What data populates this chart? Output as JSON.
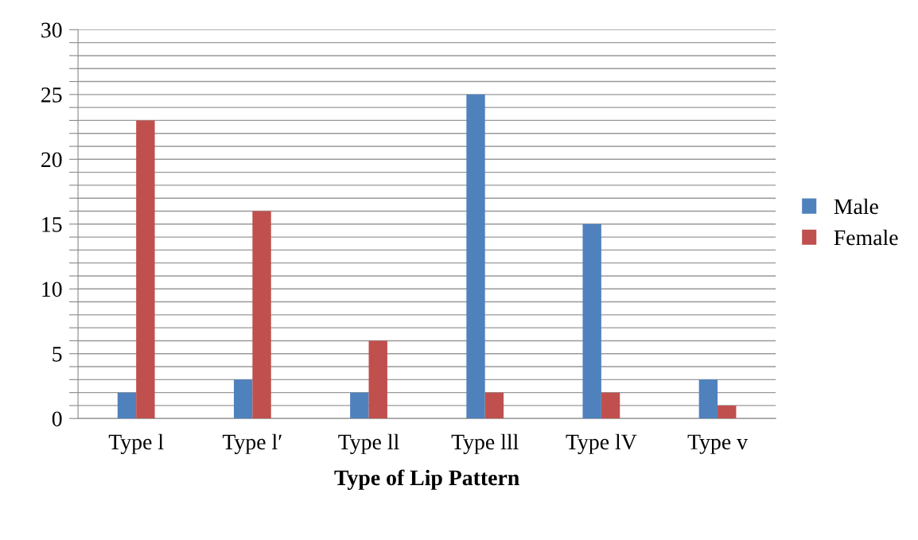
{
  "chart_data": {
    "type": "bar",
    "xlabel": "Type of Lip Pattern",
    "categories": [
      "Type l",
      "Type l′",
      "Type ll",
      "Type lll",
      "Type lV",
      "Type v"
    ],
    "series": [
      {
        "name": "Male",
        "color": "#4f81bd",
        "values": [
          2,
          3,
          2,
          25,
          15,
          3
        ]
      },
      {
        "name": "Female",
        "color": "#c0504d",
        "values": [
          23,
          16,
          6,
          2,
          2,
          1
        ]
      }
    ],
    "ylim": [
      0,
      30
    ],
    "yticks": [
      0,
      {
        "value": 1,
        "label": null
      },
      {
        "value": 2,
        "label": null
      },
      {
        "value": 3,
        "label": null
      },
      {
        "value": 4,
        "label": null
      },
      5,
      {
        "value": 6,
        "label": null
      },
      {
        "value": 7,
        "label": null
      },
      {
        "value": 8,
        "label": null
      },
      {
        "value": 9,
        "label": null
      },
      10,
      {
        "value": 11,
        "label": null
      },
      {
        "value": 12,
        "label": null
      },
      {
        "value": 13,
        "label": null
      },
      {
        "value": 14,
        "label": null
      },
      15,
      {
        "value": 16,
        "label": null
      },
      {
        "value": 17,
        "label": null
      },
      {
        "value": 18,
        "label": null
      },
      {
        "value": 19,
        "label": null
      },
      20,
      {
        "value": 21,
        "label": null
      },
      {
        "value": 22,
        "label": null
      },
      {
        "value": 23,
        "label": null
      },
      {
        "value": 24,
        "label": null
      },
      25,
      {
        "value": 26,
        "label": null
      },
      {
        "value": 27,
        "label": null
      },
      {
        "value": 28,
        "label": null
      },
      {
        "value": 29,
        "label": null
      },
      30
    ],
    "grid": "y",
    "legend": "right"
  }
}
